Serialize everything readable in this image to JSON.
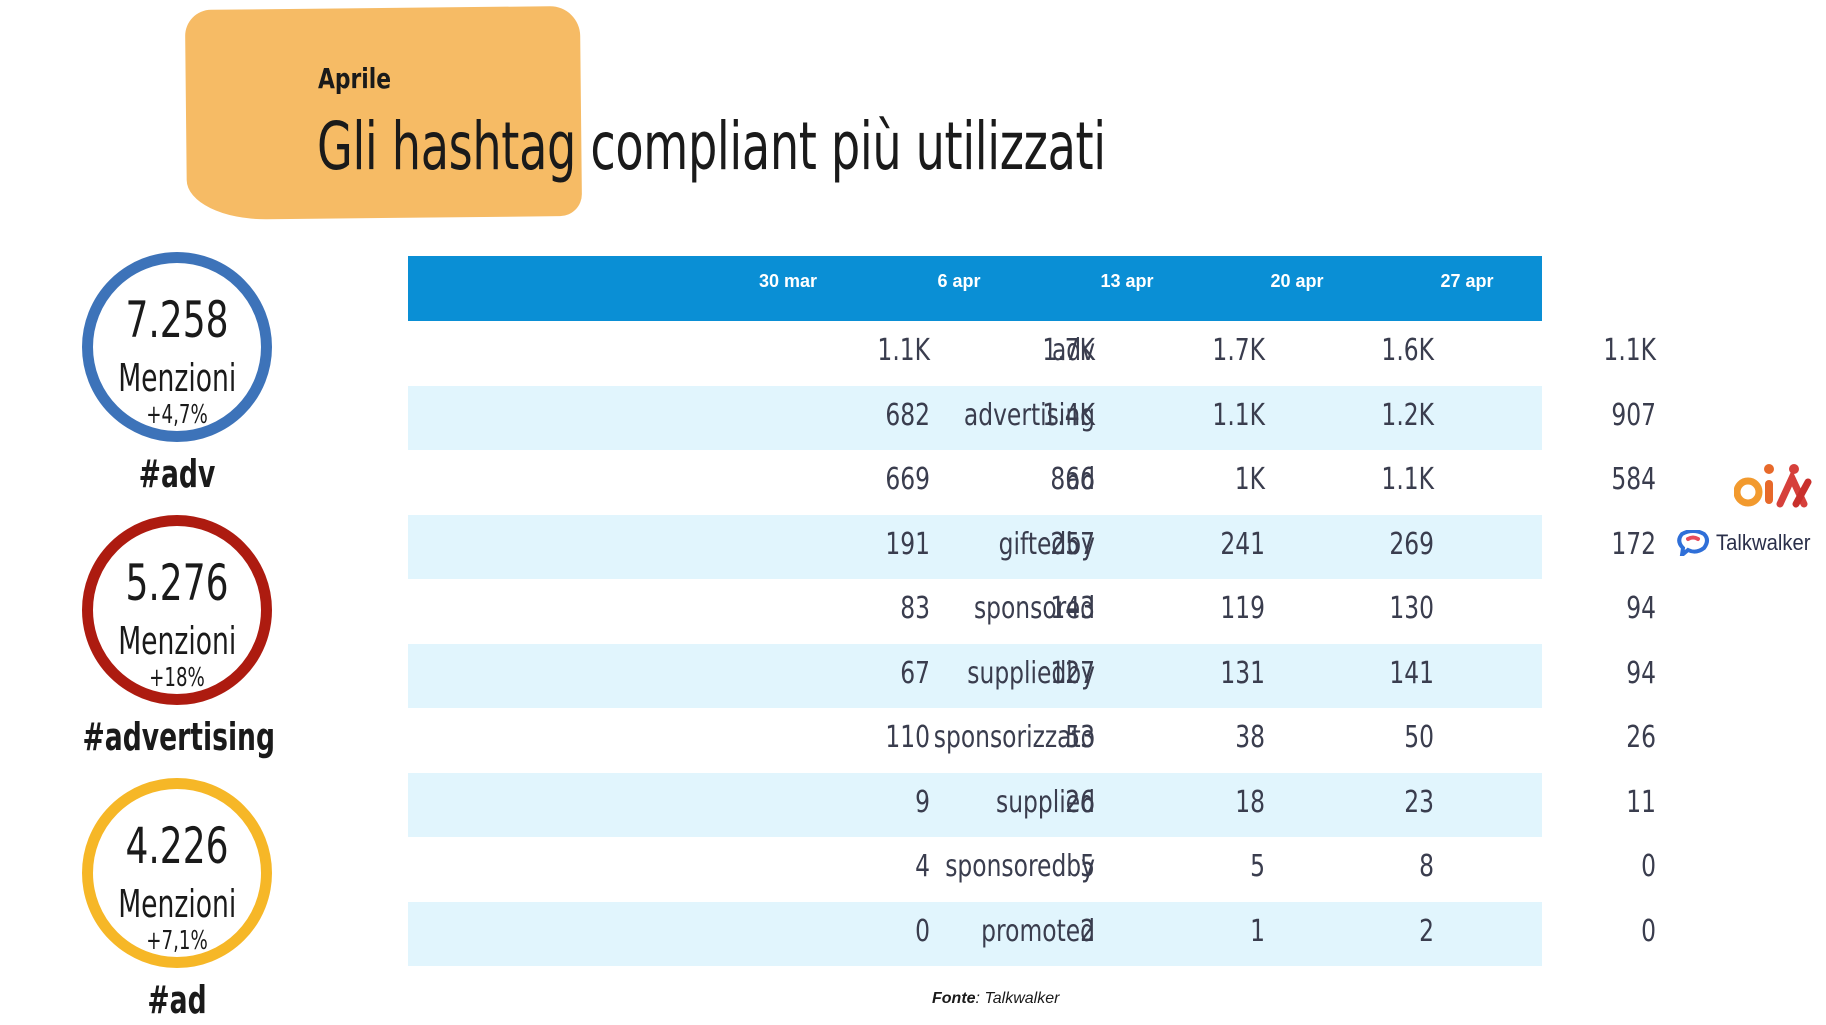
{
  "header": {
    "month": "Aprile",
    "title": "Gli hashtag compliant più utilizzati"
  },
  "stats": [
    {
      "value": "7.258",
      "label": "Menzioni",
      "delta": "+4,7%",
      "hashtag": "#adv",
      "color": "#3d73b9"
    },
    {
      "value": "5.276",
      "label": "Menzioni",
      "delta": "+18%",
      "hashtag": "#advertising",
      "color": "#ad1b10"
    },
    {
      "value": "4.226",
      "label": "Menzioni",
      "delta": "+7,1%",
      "hashtag": "#ad",
      "color": "#f6b727"
    }
  ],
  "table": {
    "header_color": "#0a8fd5",
    "stripe_color": "#e1f5fd",
    "columns": [
      "30 mar",
      "6 apr",
      "13 apr",
      "20 apr",
      "27 apr"
    ],
    "rows": [
      {
        "name": "adv",
        "values": [
          "1.1K",
          "1.7K",
          "1.7K",
          "1.6K",
          "1.1K"
        ]
      },
      {
        "name": "advertising",
        "values": [
          "682",
          "1.4K",
          "1.1K",
          "1.2K",
          "907"
        ]
      },
      {
        "name": "ad",
        "values": [
          "669",
          "866",
          "1K",
          "1.1K",
          "584"
        ]
      },
      {
        "name": "giftedby",
        "values": [
          "191",
          "257",
          "241",
          "269",
          "172"
        ]
      },
      {
        "name": "sponsored",
        "values": [
          "83",
          "143",
          "119",
          "130",
          "94"
        ]
      },
      {
        "name": "suppliedby",
        "values": [
          "67",
          "127",
          "131",
          "141",
          "94"
        ]
      },
      {
        "name": "sponsorizzato",
        "values": [
          "110",
          "53",
          "38",
          "50",
          "26"
        ]
      },
      {
        "name": "supplied",
        "values": [
          "9",
          "26",
          "18",
          "23",
          "11"
        ]
      },
      {
        "name": "sponsoredby",
        "values": [
          "4",
          "5",
          "5",
          "8",
          "0"
        ]
      },
      {
        "name": "promoted",
        "values": [
          "0",
          "2",
          "1",
          "2",
          "0"
        ]
      }
    ]
  },
  "source": {
    "label": "Fonte",
    "value": ": Talkwalker"
  },
  "logos": {
    "brand_text": "Talkwalker"
  }
}
